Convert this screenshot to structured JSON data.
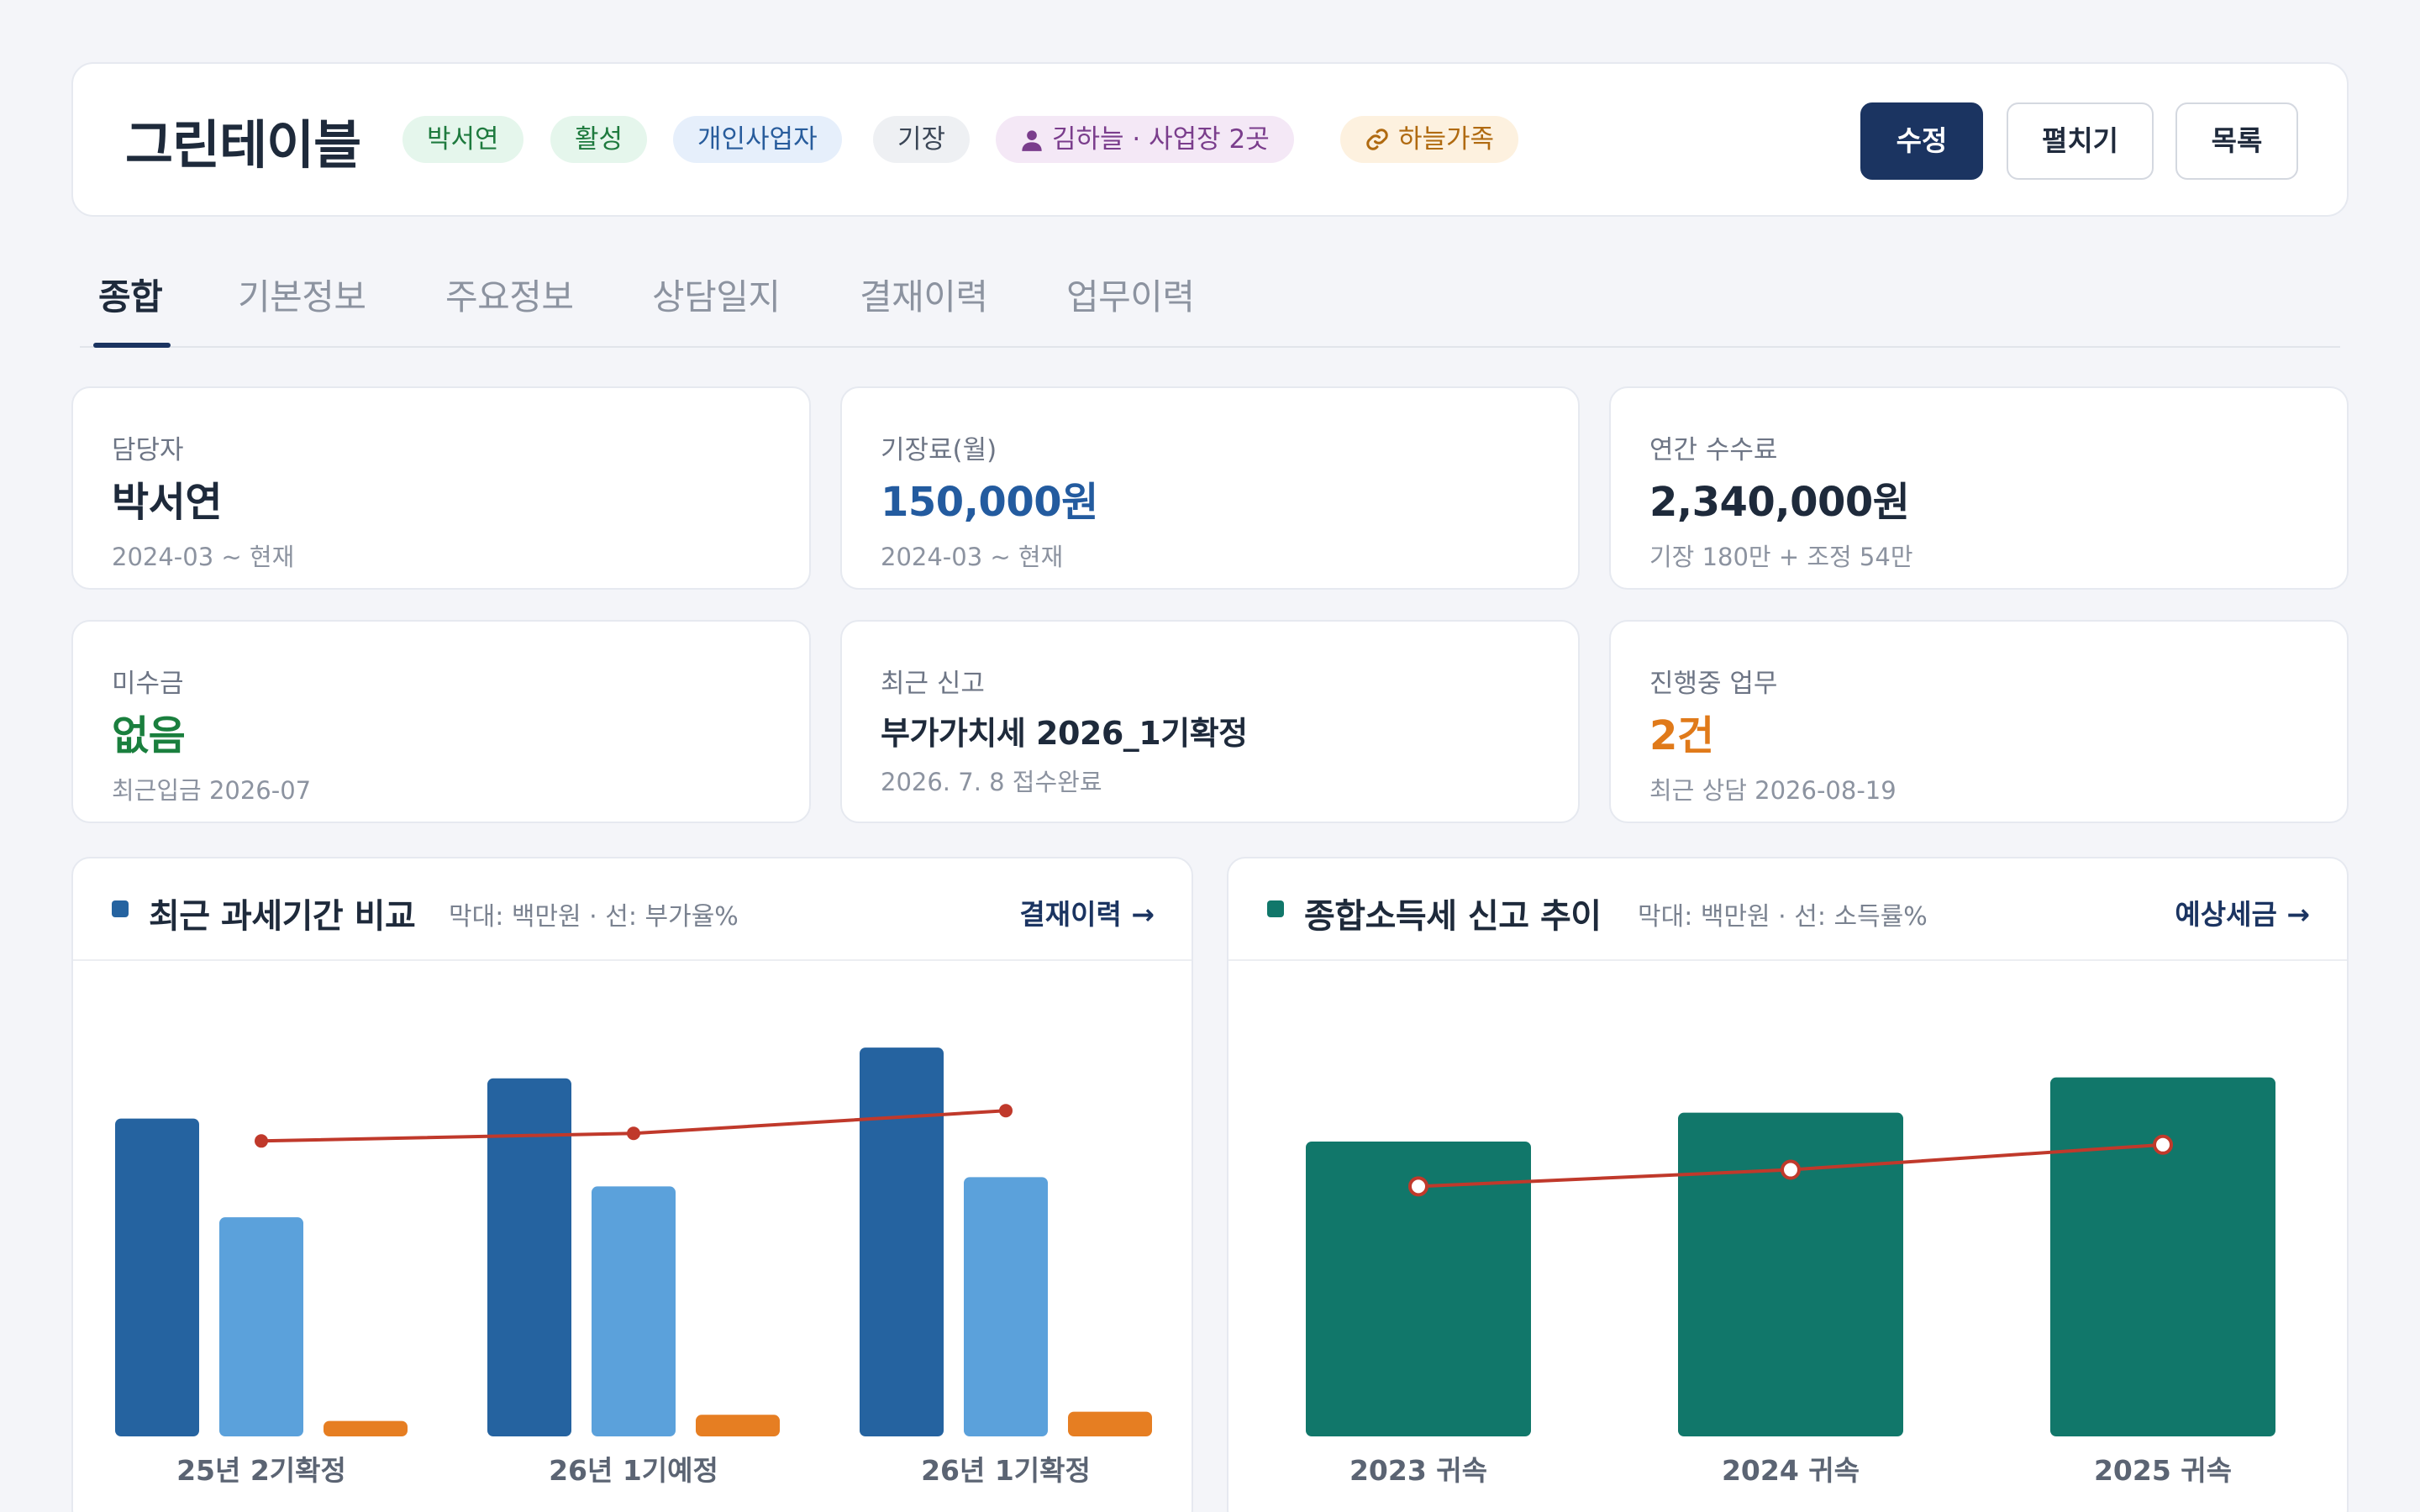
{
  "header": {
    "client_name": "그린테이블",
    "badges": {
      "manager": "박서연",
      "status": "활성",
      "biz_type": "개인사업자",
      "service": "기장",
      "owner": "김하늘 · 사업장 2곳",
      "group": "하늘가족"
    },
    "buttons": {
      "edit": "수정",
      "expand": "펼치기",
      "list": "목록"
    }
  },
  "tabs": [
    "종합",
    "기본정보",
    "주요정보",
    "상담일지",
    "결재이력",
    "업무이력"
  ],
  "cards": [
    {
      "label": "담당자",
      "value": "박서연",
      "sub": "2024-03 ~ 현재"
    },
    {
      "label": "기장료(월)",
      "value": "150,000원",
      "sub": "2024-03 ~ 현재"
    },
    {
      "label": "연간 수수료",
      "value": "2,340,000원",
      "sub": "기장 180만 + 조정 54만"
    },
    {
      "label": "미수금",
      "value": "없음",
      "sub": "최근입금 2026-07"
    },
    {
      "label": "최근 신고",
      "value": "부가가치세 2026_1기확정",
      "sub": "2026. 7. 8 접수완료"
    },
    {
      "label": "진행중 업무",
      "value": "2건",
      "sub": "최근 상담 2026-08-19"
    }
  ],
  "panels": {
    "vat": {
      "title": "최근 과세기간 비교",
      "subtitle": "막대: 백만원 · 선: 부가율%",
      "link": "결재이력 →"
    },
    "income": {
      "title": "종합소득세 신고 추이",
      "subtitle": "막대: 백만원 · 선: 소득률%",
      "link": "예상세금 →"
    }
  },
  "colors": {
    "navy": "#1b3461",
    "bar_dark_blue": "#2563a0",
    "bar_light_blue": "#5ba1db",
    "bar_orange": "#e67e22",
    "bar_teal": "#11776a",
    "line_red": "#c0392b"
  },
  "chart_data": [
    {
      "type": "bar",
      "title": "최근 과세기간 비교",
      "categories": [
        "25년 2기확정",
        "26년 1기예정",
        "26년 1기확정"
      ],
      "series": [
        {
          "values": [
            103,
            116,
            126
          ],
          "color": "#2563a0"
        },
        {
          "values": [
            71,
            81,
            84
          ],
          "color": "#5ba1db"
        },
        {
          "values": [
            5,
            7,
            8
          ],
          "color": "#e67e22"
        }
      ],
      "line": {
        "values": [
          7.8,
          8.0,
          8.6
        ],
        "color": "#c0392b"
      },
      "ylim": [
        0,
        135
      ],
      "line_ylim": [
        0,
        11
      ],
      "grid": false,
      "legend": "none"
    },
    {
      "type": "bar",
      "title": "종합소득세 신고 추이",
      "categories": [
        "2023 귀속",
        "2024 귀속",
        "2025 귀속"
      ],
      "series": [
        {
          "values": [
            92,
            101,
            112
          ],
          "color": "#11776a"
        }
      ],
      "line": {
        "values": [
          15.0,
          16.0,
          17.5
        ],
        "color": "#c0392b"
      },
      "ylim": [
        0,
        130
      ],
      "line_ylim": [
        0,
        25
      ],
      "grid": false,
      "legend": "none"
    }
  ]
}
